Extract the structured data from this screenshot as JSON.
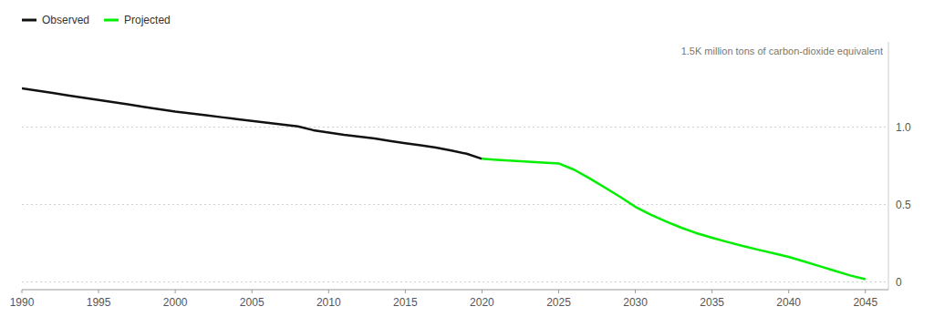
{
  "chart_data": {
    "type": "line",
    "annotations": [
      "1.5K million tons of carbon-dioxide equivalent"
    ],
    "x": [
      1990,
      1991,
      1992,
      1993,
      1994,
      1995,
      1996,
      1997,
      1998,
      1999,
      2000,
      2001,
      2002,
      2003,
      2004,
      2005,
      2006,
      2007,
      2008,
      2009,
      2010,
      2011,
      2012,
      2013,
      2014,
      2015,
      2016,
      2017,
      2018,
      2019,
      2020,
      2021,
      2022,
      2023,
      2024,
      2025,
      2026,
      2027,
      2028,
      2029,
      2030,
      2031,
      2032,
      2033,
      2034,
      2035,
      2036,
      2037,
      2038,
      2039,
      2040,
      2041,
      2042,
      2043,
      2044,
      2045
    ],
    "series": [
      {
        "name": "Observed",
        "color": "#111111",
        "values": [
          1.25,
          1.235,
          1.22,
          1.205,
          1.19,
          1.175,
          1.16,
          1.145,
          1.13,
          1.115,
          1.1,
          1.088,
          1.076,
          1.064,
          1.052,
          1.04,
          1.028,
          1.016,
          1.004,
          0.98,
          0.965,
          0.95,
          0.938,
          0.926,
          0.91,
          0.896,
          0.882,
          0.868,
          0.848,
          0.828,
          0.795,
          null,
          null,
          null,
          null,
          null,
          null,
          null,
          null,
          null,
          null,
          null,
          null,
          null,
          null,
          null,
          null,
          null,
          null,
          null,
          null,
          null,
          null,
          null,
          null,
          null
        ]
      },
      {
        "name": "Projected",
        "color": "#00ee00",
        "values": [
          null,
          null,
          null,
          null,
          null,
          null,
          null,
          null,
          null,
          null,
          null,
          null,
          null,
          null,
          null,
          null,
          null,
          null,
          null,
          null,
          null,
          null,
          null,
          null,
          null,
          null,
          null,
          null,
          null,
          null,
          0.795,
          0.788,
          0.782,
          0.776,
          0.77,
          0.765,
          0.725,
          0.67,
          0.61,
          0.55,
          0.485,
          0.435,
          0.39,
          0.35,
          0.315,
          0.285,
          0.258,
          0.232,
          0.208,
          0.185,
          0.162,
          0.132,
          0.102,
          0.072,
          0.042,
          0.018
        ]
      }
    ],
    "xlim": [
      1990,
      2046.5
    ],
    "ylim": [
      -0.05,
      1.55
    ],
    "xticks": [
      1990,
      1995,
      2000,
      2005,
      2010,
      2015,
      2020,
      2025,
      2030,
      2035,
      2040,
      2045
    ],
    "yticks": [
      0,
      0.5,
      {
        "value": 1,
        "label": "1.0"
      }
    ],
    "grid": true,
    "legend": "top-left"
  }
}
